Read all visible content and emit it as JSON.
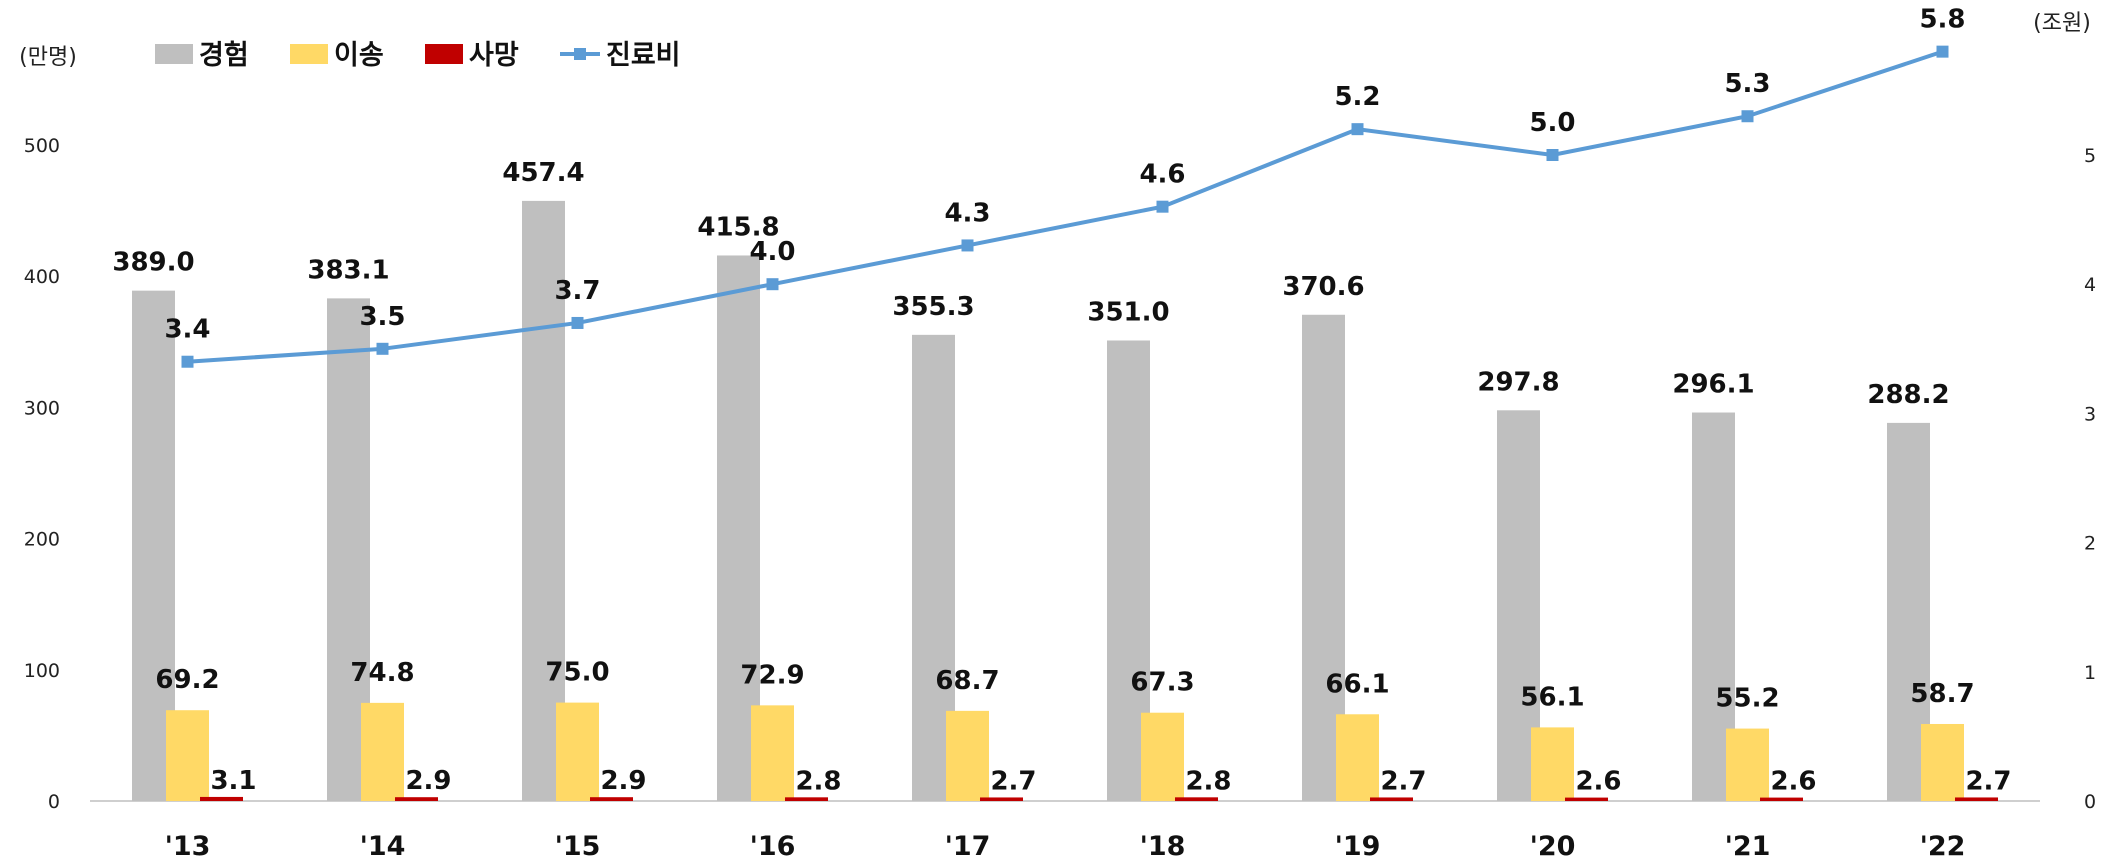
{
  "chart_data": {
    "type": "bar",
    "categories": [
      "'13",
      "'14",
      "'15",
      "'16",
      "'17",
      "'18",
      "'19",
      "'20",
      "'21",
      "'22"
    ],
    "series": [
      {
        "name": "경험",
        "kind": "bar",
        "axis": "left",
        "color": "#bfbfbf",
        "values": [
          389.0,
          383.1,
          457.4,
          415.8,
          355.3,
          351.0,
          370.6,
          297.8,
          296.1,
          288.2
        ]
      },
      {
        "name": "이송",
        "kind": "bar",
        "axis": "left",
        "color": "#ffd966",
        "values": [
          69.2,
          74.8,
          75.0,
          72.9,
          68.7,
          67.3,
          66.1,
          56.1,
          55.2,
          58.7
        ]
      },
      {
        "name": "사망",
        "kind": "bar",
        "axis": "left",
        "color": "#c00000",
        "values": [
          3.1,
          2.9,
          2.9,
          2.8,
          2.7,
          2.8,
          2.7,
          2.6,
          2.6,
          2.7
        ]
      },
      {
        "name": "진료비",
        "kind": "line",
        "axis": "right",
        "color": "#5b9bd5",
        "values": [
          3.4,
          3.5,
          3.7,
          4.0,
          4.3,
          4.6,
          5.2,
          5.0,
          5.3,
          5.8
        ]
      }
    ],
    "left_axis": {
      "unit": "(만명)",
      "range": [
        0,
        500
      ],
      "ticks": [
        0,
        100,
        200,
        300,
        400,
        500
      ]
    },
    "right_axis": {
      "unit": "(조원)",
      "range": [
        0,
        5
      ],
      "ticks": [
        0,
        1,
        2,
        3,
        4,
        5
      ]
    },
    "legend_position": "top-left",
    "grid": false
  }
}
